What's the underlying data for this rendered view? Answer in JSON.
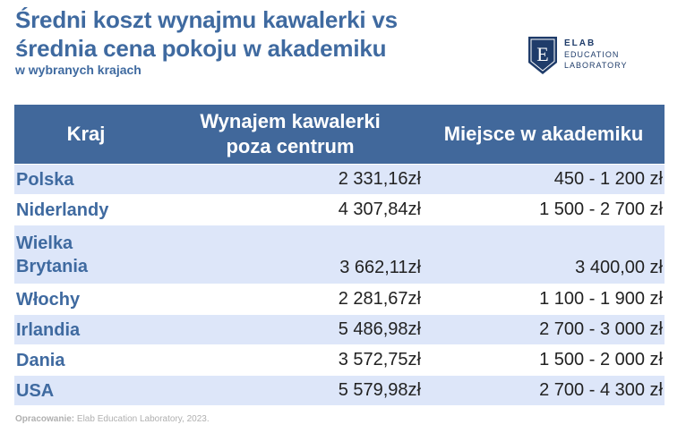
{
  "header": {
    "title": "Średni koszt wynajmu kawalerki vs\nśrednia cena pokoju w akademiku",
    "subtitle": "w wybranych krajach"
  },
  "logo": {
    "mark_letter": "E",
    "line1": "ELAB",
    "line2": "EDUCATION",
    "line3": "LABORATORY"
  },
  "table": {
    "columns": [
      "Kraj",
      "Wynajem kawalerki\npoza centrum",
      "Miejsce w akademiku"
    ],
    "rows": [
      {
        "country": "Polska",
        "studio": "2 331,16zł",
        "dorm": "450 - 1 200 zł"
      },
      {
        "country": "Niderlandy",
        "studio": "4 307,84zł",
        "dorm": "1 500 - 2 700 zł"
      },
      {
        "country": "Wielka\nBrytania",
        "studio": "3 662,11zł",
        "dorm": "3 400,00 zł"
      },
      {
        "country": "Włochy",
        "studio": "2 281,67zł",
        "dorm": "1 100 - 1 900 zł"
      },
      {
        "country": "Irlandia",
        "studio": "5 486,98zł",
        "dorm": "2 700 - 3 000 zł"
      },
      {
        "country": "Dania",
        "studio": "3 572,75zł",
        "dorm": "1 500 - 2 000 zł"
      },
      {
        "country": "USA",
        "studio": "5 579,98zł",
        "dorm": "2 700 - 4 300 zł"
      }
    ]
  },
  "footer": {
    "source_label": "Opracowanie:",
    "source_text": " Elab Education Laboratory, 2023."
  },
  "colors": {
    "accent": "#3f6aa0",
    "header_bg": "#41689b",
    "row_alt": "#dde6f9"
  }
}
